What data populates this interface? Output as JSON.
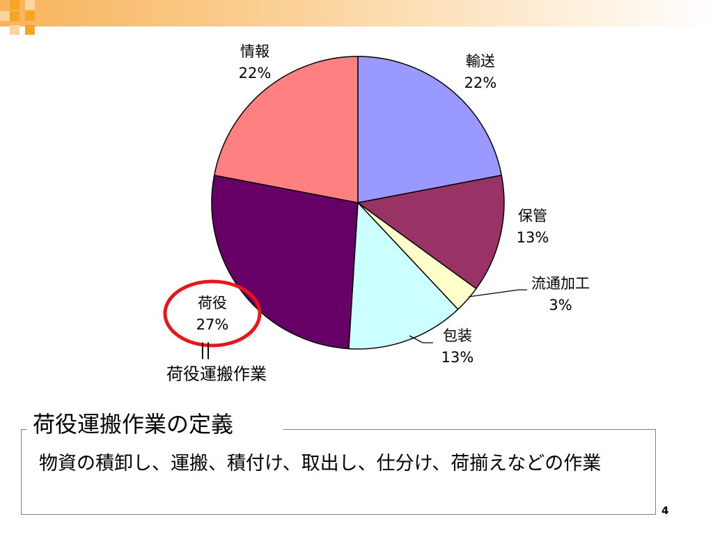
{
  "chart_data": {
    "type": "pie",
    "slices": [
      {
        "name": "輸送",
        "value": 22,
        "label": "22%",
        "color": "#9999ff"
      },
      {
        "name": "保管",
        "value": 13,
        "label": "13%",
        "color": "#993366"
      },
      {
        "name": "流通加工",
        "value": 3,
        "label": "3%",
        "color": "#ffffcc"
      },
      {
        "name": "包装",
        "value": 13,
        "label": "13%",
        "color": "#ccffff"
      },
      {
        "name": "荷役",
        "value": 27,
        "label": "27%",
        "color": "#660066"
      },
      {
        "name": "情報",
        "value": 22,
        "label": "22%",
        "color": "#ff8080"
      }
    ],
    "highlight": "荷役",
    "highlight_color": "#e8161b"
  },
  "notes": {
    "equals_sign": "||",
    "handling_label": "荷役運搬作業"
  },
  "definition": {
    "title": "荷役運搬作業の定義",
    "body": "物資の積卸し、運搬、積付け、取出し、仕分け、荷揃えなどの作業"
  },
  "page_number": "4",
  "colors": {
    "header_orange": "#f7b35a",
    "deco_orange": "#f5a623",
    "deco_light": "#fbd59e"
  }
}
